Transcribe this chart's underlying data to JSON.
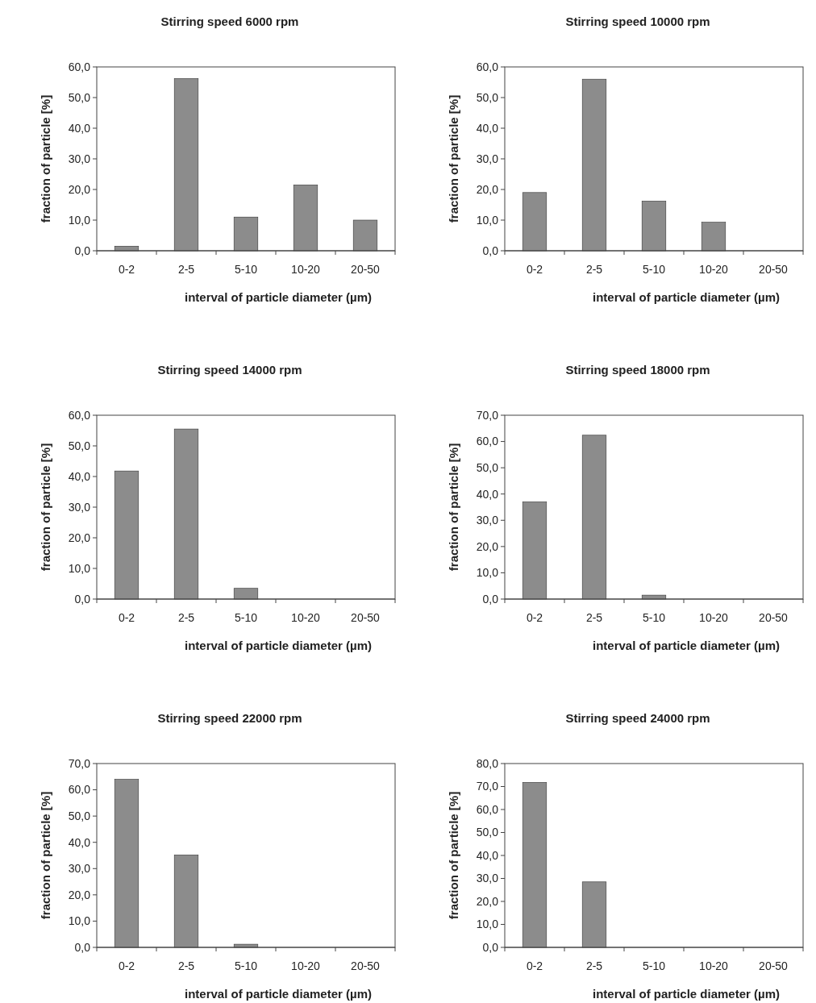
{
  "chart_data": [
    {
      "type": "bar",
      "title": "Stirring speed 6000 rpm",
      "xlabel": "interval of particle diameter (µm)",
      "ylabel": "fraction of particle [%]",
      "categories": [
        "0-2",
        "2-5",
        "5-10",
        "10-20",
        "20-50"
      ],
      "values": [
        1.5,
        56.2,
        11.0,
        21.5,
        10.0
      ],
      "color": "#8c8c8c",
      "ylim": [
        0,
        60
      ],
      "yticks": [
        {
          "value": 0,
          "label": "0,0"
        },
        {
          "value": 10,
          "label": "10,0"
        },
        {
          "value": 20,
          "label": "20,0"
        },
        {
          "value": 30,
          "label": "30,0"
        },
        {
          "value": 40,
          "label": "40,0"
        },
        {
          "value": 50,
          "label": "50,0"
        },
        {
          "value": 60,
          "label": "60,0"
        }
      ],
      "grid": false
    },
    {
      "type": "bar",
      "title": "Stirring speed 10000 rpm",
      "xlabel": "interval of particle diameter (µm)",
      "ylabel": "fraction of particle [%]",
      "categories": [
        "0-2",
        "2-5",
        "5-10",
        "10-20",
        "20-50"
      ],
      "values": [
        19.0,
        56.0,
        16.2,
        9.3,
        0.0
      ],
      "color": "#8c8c8c",
      "ylim": [
        0,
        60
      ],
      "yticks": [
        {
          "value": 0,
          "label": "0,0"
        },
        {
          "value": 10,
          "label": "10,0"
        },
        {
          "value": 20,
          "label": "20,0"
        },
        {
          "value": 30,
          "label": "30,0"
        },
        {
          "value": 40,
          "label": "40,0"
        },
        {
          "value": 50,
          "label": "50,0"
        },
        {
          "value": 60,
          "label": "60,0"
        }
      ],
      "grid": false
    },
    {
      "type": "bar",
      "title": "Stirring speed 14000 rpm",
      "xlabel": "interval of particle diameter (µm)",
      "ylabel": "fraction of particle [%]",
      "categories": [
        "0-2",
        "2-5",
        "5-10",
        "10-20",
        "20-50"
      ],
      "values": [
        41.8,
        55.5,
        3.5,
        0.0,
        0.0
      ],
      "color": "#8c8c8c",
      "ylim": [
        0,
        60
      ],
      "yticks": [
        {
          "value": 0,
          "label": "0,0"
        },
        {
          "value": 10,
          "label": "10,0"
        },
        {
          "value": 20,
          "label": "20,0"
        },
        {
          "value": 30,
          "label": "30,0"
        },
        {
          "value": 40,
          "label": "40,0"
        },
        {
          "value": 50,
          "label": "50,0"
        },
        {
          "value": 60,
          "label": "60,0"
        }
      ],
      "grid": false
    },
    {
      "type": "bar",
      "title": "Stirring speed 18000 rpm",
      "xlabel": "interval of particle diameter (µm)",
      "ylabel": "fraction of particle [%]",
      "categories": [
        "0-2",
        "2-5",
        "5-10",
        "10-20",
        "20-50"
      ],
      "values": [
        37.0,
        62.4,
        1.5,
        0.0,
        0.0
      ],
      "color": "#8c8c8c",
      "ylim": [
        0,
        70
      ],
      "yticks": [
        {
          "value": 0,
          "label": "0,0"
        },
        {
          "value": 10,
          "label": "10,0"
        },
        {
          "value": 20,
          "label": "20,0"
        },
        {
          "value": 30,
          "label": "30,0"
        },
        {
          "value": 40,
          "label": "40,0"
        },
        {
          "value": 50,
          "label": "50,0"
        },
        {
          "value": 60,
          "label": "60,0"
        },
        {
          "value": 70,
          "label": "70,0"
        }
      ],
      "grid": false
    },
    {
      "type": "bar",
      "title": "Stirring speed 22000 rpm",
      "xlabel": "interval of particle diameter (µm)",
      "ylabel": "fraction of particle [%]",
      "categories": [
        "0-2",
        "2-5",
        "5-10",
        "10-20",
        "20-50"
      ],
      "values": [
        64.0,
        35.2,
        1.2,
        0.0,
        0.0
      ],
      "color": "#8c8c8c",
      "ylim": [
        0,
        70
      ],
      "yticks": [
        {
          "value": 0,
          "label": "0,0"
        },
        {
          "value": 10,
          "label": "10,0"
        },
        {
          "value": 20,
          "label": "20,0"
        },
        {
          "value": 30,
          "label": "30,0"
        },
        {
          "value": 40,
          "label": "40,0"
        },
        {
          "value": 50,
          "label": "50,0"
        },
        {
          "value": 60,
          "label": "60,0"
        },
        {
          "value": 70,
          "label": "70,0"
        }
      ],
      "grid": false
    },
    {
      "type": "bar",
      "title": "Stirring speed 24000 rpm",
      "xlabel": "interval of particle diameter (µm)",
      "ylabel": "fraction of particle [%]",
      "categories": [
        "0-2",
        "2-5",
        "5-10",
        "10-20",
        "20-50"
      ],
      "values": [
        71.8,
        28.5,
        0.0,
        0.0,
        0.0
      ],
      "color": "#8c8c8c",
      "ylim": [
        0,
        80
      ],
      "yticks": [
        {
          "value": 0,
          "label": "0,0"
        },
        {
          "value": 10,
          "label": "10,0"
        },
        {
          "value": 20,
          "label": "20,0"
        },
        {
          "value": 30,
          "label": "30,0"
        },
        {
          "value": 40,
          "label": "40,0"
        },
        {
          "value": 50,
          "label": "50,0"
        },
        {
          "value": 60,
          "label": "60,0"
        },
        {
          "value": 70,
          "label": "70,0"
        },
        {
          "value": 80,
          "label": "80,0"
        }
      ],
      "grid": false
    }
  ]
}
